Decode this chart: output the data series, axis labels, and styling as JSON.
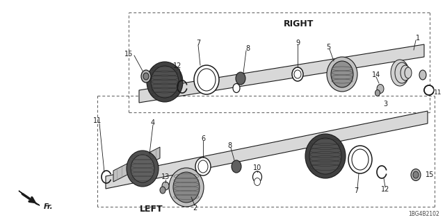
{
  "part_number": "1BG4B2102",
  "background_color": "#ffffff",
  "line_color": "#1a1a1a",
  "right_label": "RIGHT",
  "left_label": "LEFT",
  "fr_label": "Fr.",
  "figsize": [
    6.4,
    3.2
  ],
  "dpi": 100
}
